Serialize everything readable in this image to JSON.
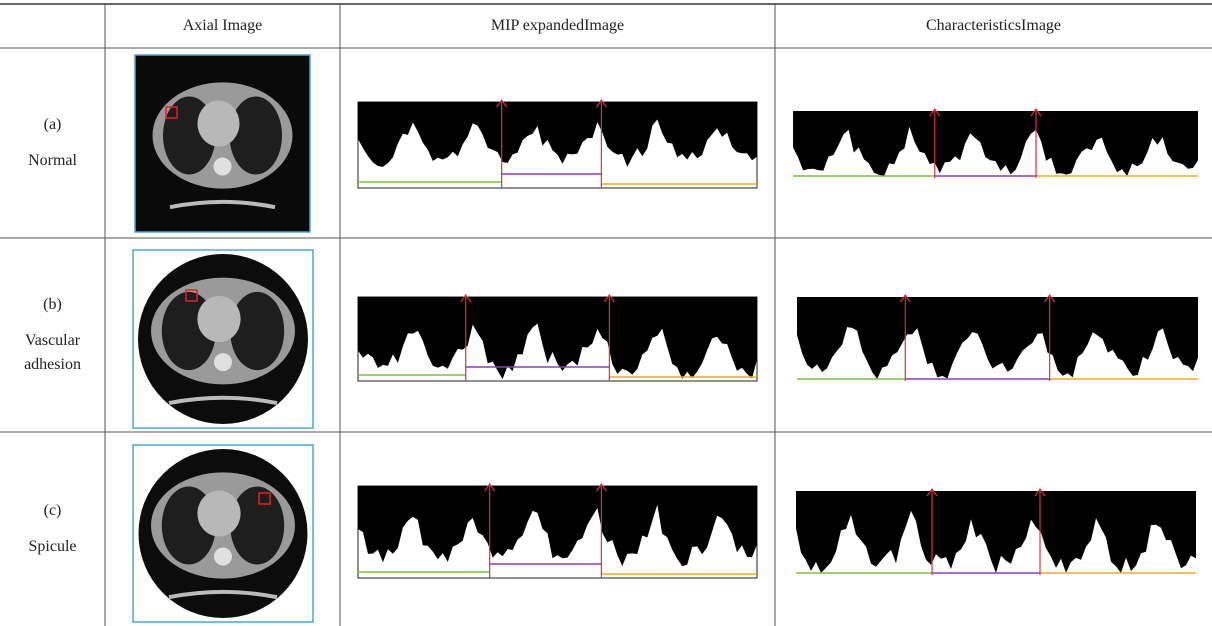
{
  "table": {
    "header": [
      "Axial Image",
      "MIP expandedImage",
      "CharacteristicsImage"
    ],
    "rows": [
      {
        "label": "(a)",
        "name": "Normal"
      },
      {
        "label": "(b)",
        "name": "Vascular adhesion"
      },
      {
        "label": "(c)",
        "name": "Spicule"
      }
    ]
  }
}
